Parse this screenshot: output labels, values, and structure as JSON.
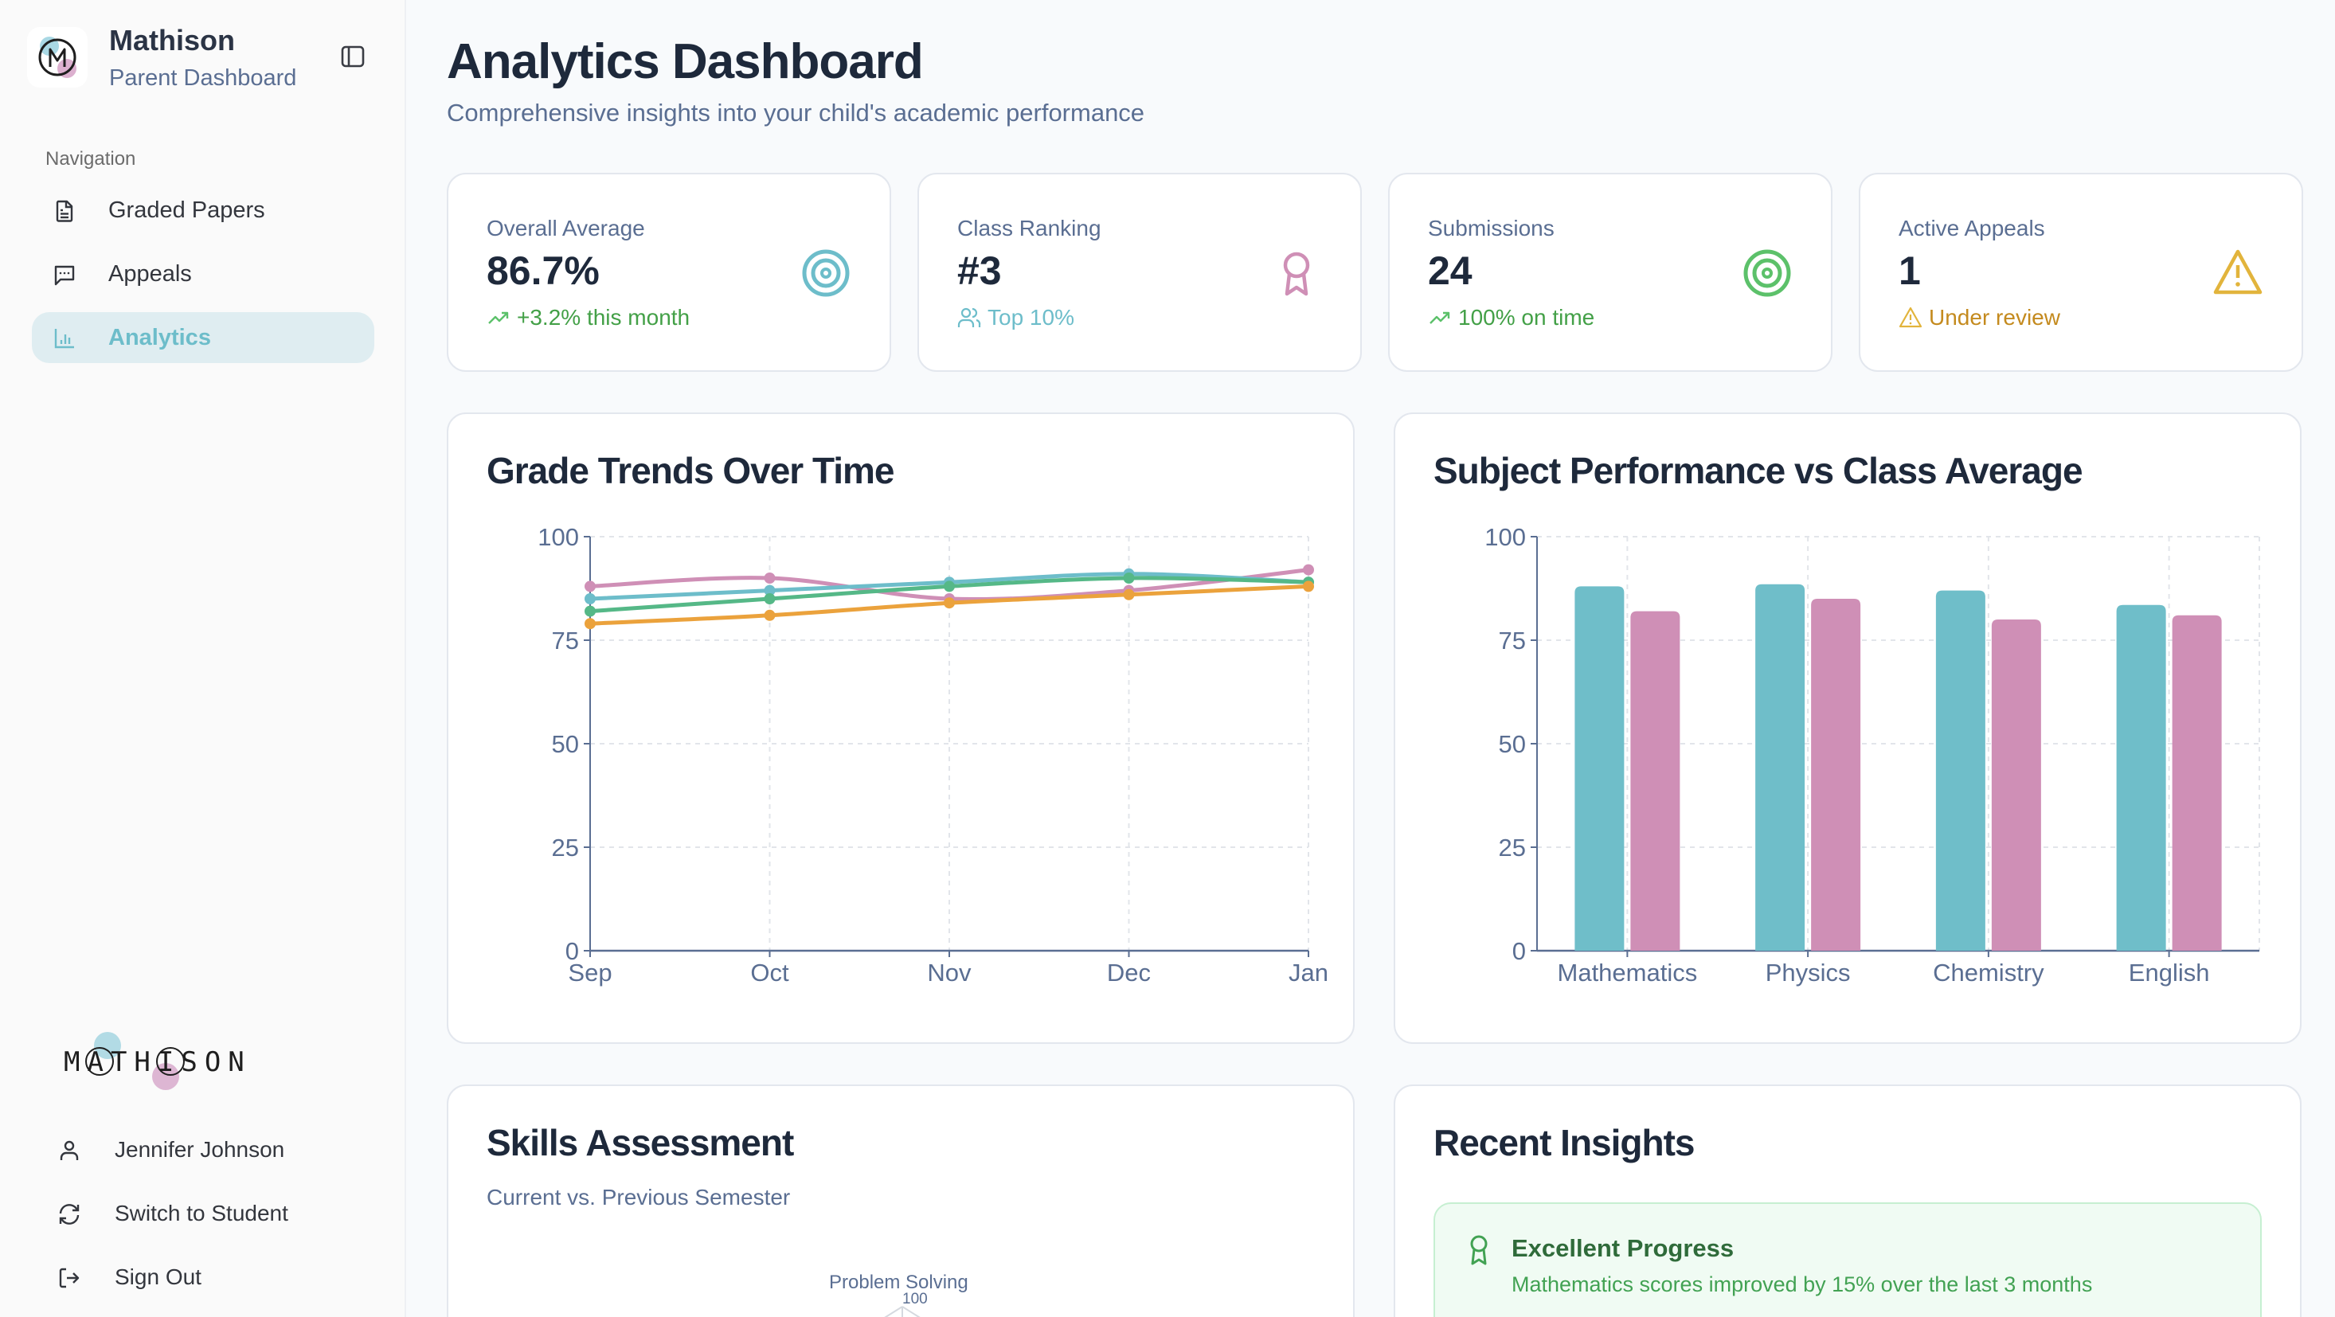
{
  "sidebar": {
    "brand_name": "Mathison",
    "brand_subtitle": "Parent Dashboard",
    "nav_label": "Navigation",
    "items": [
      {
        "label": "Graded Papers",
        "icon": "file-text-icon",
        "active": false
      },
      {
        "label": "Appeals",
        "icon": "message-square-icon",
        "active": false
      },
      {
        "label": "Analytics",
        "icon": "bar-chart-icon",
        "active": true
      }
    ],
    "wordmark": "MATHISON",
    "footer": [
      {
        "label": "Jennifer Johnson",
        "icon": "user-icon"
      },
      {
        "label": "Switch to Student",
        "icon": "refresh-icon"
      },
      {
        "label": "Sign Out",
        "icon": "log-out-icon"
      }
    ]
  },
  "header": {
    "title": "Analytics Dashboard",
    "subtitle": "Comprehensive insights into your child's academic performance"
  },
  "stats": [
    {
      "label": "Overall Average",
      "value": "86.7%",
      "note": "+3.2% this month",
      "note_icon": "trending-up-icon",
      "icon": "target-icon",
      "icon_color": "#6dbdca",
      "note_color": "#43a047"
    },
    {
      "label": "Class Ranking",
      "value": "#3",
      "note": "Top 10%",
      "note_icon": "users-icon",
      "icon": "award-icon",
      "icon_color": "#cf8fb6",
      "note_color": "#6dbdca"
    },
    {
      "label": "Submissions",
      "value": "24",
      "note": "100% on time",
      "note_icon": "trending-up-icon",
      "icon": "target-icon",
      "icon_color": "#5cc16a",
      "note_color": "#43a047"
    },
    {
      "label": "Active Appeals",
      "value": "1",
      "note": "Under review",
      "note_icon": "alert-triangle-icon",
      "icon": "alert-triangle-icon",
      "icon_color": "#e2b43c",
      "note_color": "#c48a1e"
    }
  ],
  "chart_data": [
    {
      "type": "line",
      "title": "Grade Trends Over Time",
      "categories": [
        "Sep",
        "Oct",
        "Nov",
        "Dec",
        "Jan"
      ],
      "ylim": [
        0,
        100
      ],
      "yticks": [
        0,
        25,
        50,
        75,
        100
      ],
      "grid": true,
      "xlabel": "",
      "ylabel": "",
      "series": [
        {
          "color": "#cf8fb6",
          "values": [
            88,
            90,
            85,
            87,
            92
          ]
        },
        {
          "color": "#6dbdca",
          "values": [
            85,
            87,
            89,
            91,
            89
          ]
        },
        {
          "color": "#55b887",
          "values": [
            82,
            85,
            88,
            90,
            89
          ]
        },
        {
          "color": "#eba23c",
          "values": [
            79,
            81,
            84,
            86,
            88
          ]
        }
      ]
    },
    {
      "type": "bar",
      "title": "Subject Performance vs Class Average",
      "categories": [
        "Mathematics",
        "Physics",
        "Chemistry",
        "English"
      ],
      "ylim": [
        0,
        100
      ],
      "yticks": [
        0,
        25,
        50,
        75,
        100
      ],
      "grid": true,
      "xlabel": "",
      "ylabel": "",
      "series": [
        {
          "color": "#6fbec9",
          "values": [
            88,
            88.5,
            87,
            83.5
          ]
        },
        {
          "color": "#cf8fb6",
          "values": [
            82,
            85,
            80,
            81
          ]
        }
      ]
    }
  ],
  "skills": {
    "title": "Skills Assessment",
    "subtitle": "Current vs. Previous Semester",
    "axis_label": "Problem Solving",
    "axis_tick": "100"
  },
  "insights": {
    "title": "Recent Insights",
    "items": [
      {
        "title": "Excellent Progress",
        "text": "Mathematics scores improved by 15% over the last 3 months",
        "icon": "award-icon"
      }
    ]
  }
}
